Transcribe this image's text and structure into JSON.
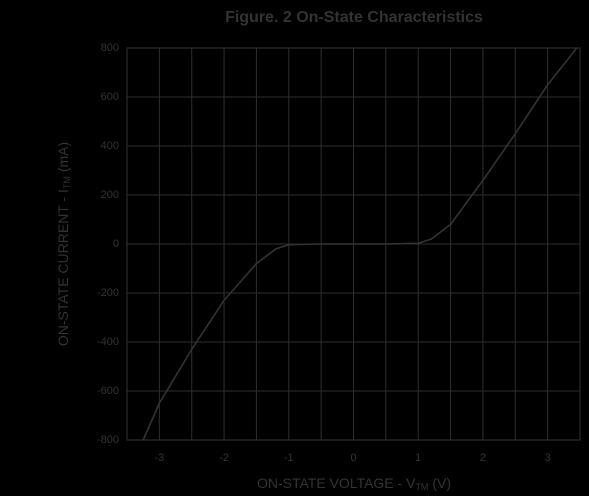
{
  "chart_data": {
    "type": "line",
    "title": "Figure. 2 On-State Characteristics",
    "xlabel": [
      "ON-STATE VOLTAGE - V",
      "TM",
      " (V)"
    ],
    "ylabel": [
      "ON-STATE CURRENT - I",
      "TM",
      " (mA)"
    ],
    "x": [
      -3.25,
      -3,
      -2.5,
      -2,
      -1.5,
      -1.2,
      -1,
      -0.5,
      0,
      0.5,
      1,
      1.2,
      1.5,
      2,
      2.5,
      3,
      3.45
    ],
    "series": [
      {
        "color": "#333333",
        "values": [
          -800,
          -650,
          -430,
          -230,
          -80,
          -20,
          -3,
          0,
          0,
          0,
          3,
          20,
          80,
          260,
          450,
          650,
          800
        ]
      }
    ],
    "xlim": [
      -3.5,
      3.5
    ],
    "xticks": [
      -3,
      -2,
      -1,
      0,
      1,
      2,
      3
    ],
    "x_minor_grid": [
      -3.5,
      -2.5,
      -1.5,
      -0.5,
      0.5,
      1.5,
      2.5,
      3.5
    ],
    "ylim": [
      -800,
      800
    ],
    "yticks": [
      -800,
      -600,
      -400,
      -200,
      0,
      200,
      400,
      600,
      800
    ],
    "grid": true
  }
}
